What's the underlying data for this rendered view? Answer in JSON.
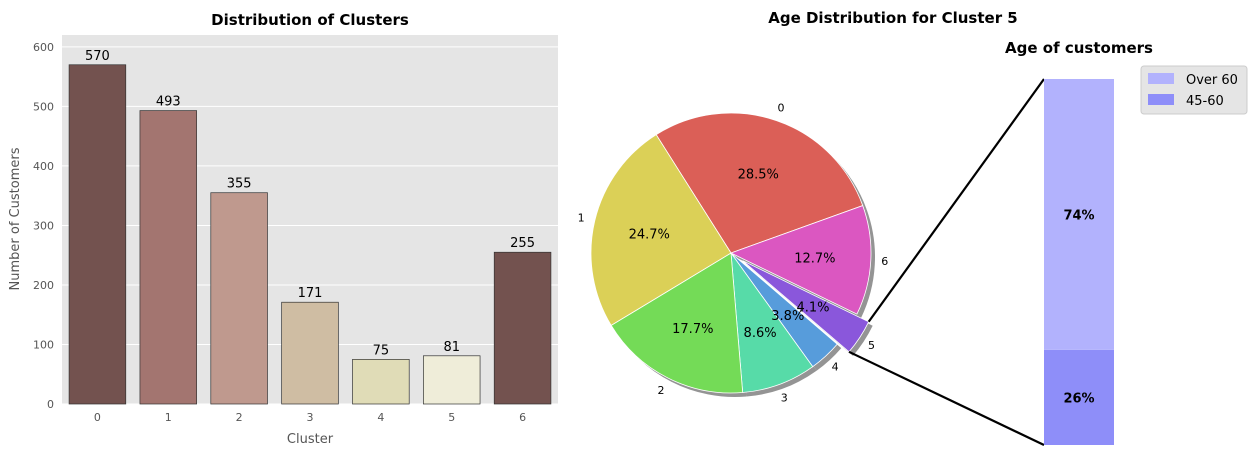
{
  "chart_data": [
    {
      "type": "bar",
      "title": "Distribution of Clusters",
      "xlabel": "Cluster",
      "ylabel": "Number of Customers",
      "categories": [
        "0",
        "1",
        "2",
        "3",
        "4",
        "5",
        "6"
      ],
      "values": [
        570,
        493,
        355,
        171,
        75,
        81,
        255
      ],
      "value_labels": [
        "570",
        "493",
        "355",
        "171",
        "75",
        "81",
        "255"
      ],
      "ylim": [
        0,
        620
      ],
      "yticks": [
        0,
        100,
        200,
        300,
        400,
        500,
        600
      ],
      "colors": [
        "#73524f",
        "#a37570",
        "#bf998e",
        "#cfbda3",
        "#e0dcb7",
        "#efedd9",
        "#73524f"
      ],
      "grid": true,
      "background": "#e5e5e5"
    },
    {
      "type": "pie",
      "title": "Age Distribution for Cluster 5",
      "labels": [
        "0",
        "6",
        "5",
        "4",
        "3",
        "2",
        "1"
      ],
      "values": [
        28.5,
        12.7,
        4.1,
        3.8,
        8.6,
        17.7,
        24.7
      ],
      "pct_labels": [
        "28.5%",
        "12.7%",
        "4.1%",
        "3.8%",
        "8.6%",
        "17.7%",
        "24.7%"
      ],
      "colors": [
        "#db5f57",
        "#db57c1",
        "#8a57db",
        "#579cdb",
        "#57dba8",
        "#74db57",
        "#dbd057"
      ],
      "exploded": "5",
      "shadow": true
    },
    {
      "type": "bar",
      "title": "Age of customers",
      "stacked": true,
      "series": [
        {
          "name": "45-60",
          "value": 26,
          "label": "26%",
          "color": "#8e8ef9"
        },
        {
          "name": "Over 60",
          "value": 74,
          "label": "74%",
          "color": "#b2b2fd"
        }
      ],
      "legend": [
        "Over 60",
        "45-60"
      ],
      "legend_placement": "upper-right"
    }
  ]
}
